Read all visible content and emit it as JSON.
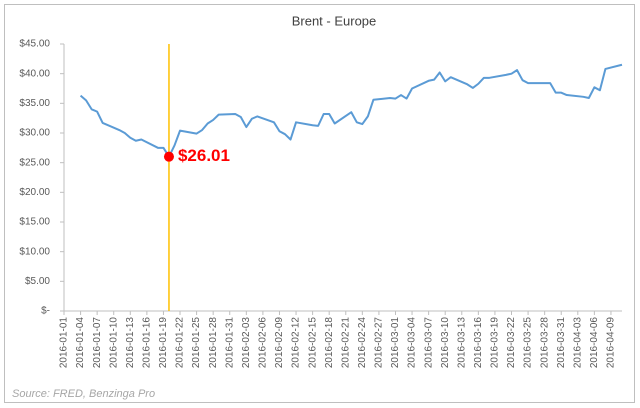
{
  "chart_data": {
    "type": "line",
    "title": "Brent - Europe",
    "x": [
      "2016-01-04",
      "2016-01-05",
      "2016-01-06",
      "2016-01-07",
      "2016-01-08",
      "2016-01-11",
      "2016-01-12",
      "2016-01-13",
      "2016-01-14",
      "2016-01-15",
      "2016-01-18",
      "2016-01-19",
      "2016-01-20",
      "2016-01-21",
      "2016-01-22",
      "2016-01-25",
      "2016-01-26",
      "2016-01-27",
      "2016-01-28",
      "2016-01-29",
      "2016-02-01",
      "2016-02-02",
      "2016-02-03",
      "2016-02-04",
      "2016-02-05",
      "2016-02-08",
      "2016-02-09",
      "2016-02-10",
      "2016-02-11",
      "2016-02-12",
      "2016-02-15",
      "2016-02-16",
      "2016-02-17",
      "2016-02-18",
      "2016-02-19",
      "2016-02-22",
      "2016-02-23",
      "2016-02-24",
      "2016-02-25",
      "2016-02-26",
      "2016-02-29",
      "2016-03-01",
      "2016-03-02",
      "2016-03-03",
      "2016-03-04",
      "2016-03-07",
      "2016-03-08",
      "2016-03-09",
      "2016-03-10",
      "2016-03-11",
      "2016-03-14",
      "2016-03-15",
      "2016-03-16",
      "2016-03-17",
      "2016-03-18",
      "2016-03-21",
      "2016-03-22",
      "2016-03-23",
      "2016-03-24",
      "2016-03-25",
      "2016-03-28",
      "2016-03-29",
      "2016-03-30",
      "2016-03-31",
      "2016-04-01",
      "2016-04-04",
      "2016-04-05",
      "2016-04-06",
      "2016-04-07",
      "2016-04-08",
      "2016-04-11"
    ],
    "values": [
      36.3,
      35.5,
      34.0,
      33.6,
      31.7,
      30.5,
      30.0,
      29.2,
      28.7,
      28.9,
      27.5,
      27.5,
      26.01,
      27.9,
      30.4,
      29.9,
      30.5,
      31.6,
      32.2,
      33.1,
      33.2,
      32.7,
      31.0,
      32.4,
      32.8,
      31.8,
      30.3,
      29.8,
      28.9,
      31.8,
      31.3,
      31.2,
      33.2,
      33.2,
      31.6,
      33.5,
      31.8,
      31.5,
      32.8,
      35.6,
      35.9,
      35.8,
      36.4,
      35.8,
      37.5,
      38.8,
      39.0,
      40.2,
      38.7,
      39.4,
      38.2,
      37.6,
      38.3,
      39.3,
      39.3,
      39.8,
      40.0,
      40.6,
      38.9,
      38.4,
      38.4,
      38.4,
      36.8,
      36.8,
      36.4,
      36.1,
      35.9,
      37.7,
      37.2,
      40.8,
      41.5
    ],
    "color": "#5b9bd5",
    "xlim": [
      "2016-01-01",
      "2016-04-11"
    ],
    "xticks": [
      "2016-01-01",
      "2016-01-04",
      "2016-01-07",
      "2016-01-10",
      "2016-01-13",
      "2016-01-16",
      "2016-01-19",
      "2016-01-22",
      "2016-01-25",
      "2016-01-28",
      "2016-01-31",
      "2016-02-03",
      "2016-02-06",
      "2016-02-09",
      "2016-02-12",
      "2016-02-15",
      "2016-02-18",
      "2016-02-21",
      "2016-02-24",
      "2016-02-27",
      "2016-03-01",
      "2016-03-04",
      "2016-03-07",
      "2016-03-10",
      "2016-03-13",
      "2016-03-16",
      "2016-03-19",
      "2016-03-22",
      "2016-03-25",
      "2016-03-28",
      "2016-03-31",
      "2016-04-03",
      "2016-04-06",
      "2016-04-09"
    ],
    "ylim": [
      0,
      45
    ],
    "yticks": [
      {
        "value": 0,
        "label": "$-"
      },
      {
        "value": 5,
        "label": "$5.00"
      },
      {
        "value": 10,
        "label": "$10.00"
      },
      {
        "value": 15,
        "label": "$15.00"
      },
      {
        "value": 20,
        "label": "$20.00"
      },
      {
        "value": 25,
        "label": "$25.00"
      },
      {
        "value": 30,
        "label": "$30.00"
      },
      {
        "value": 35,
        "label": "$35.00"
      },
      {
        "value": 40,
        "label": "$40.00"
      },
      {
        "value": 45,
        "label": "$45.00"
      }
    ],
    "annotation": {
      "x": "2016-01-20",
      "value": 26.01,
      "label": "$26.01",
      "line_color": "#ffc000",
      "dot_color": "#ff0000"
    },
    "source": "Source: FRED, Benzinga Pro"
  }
}
